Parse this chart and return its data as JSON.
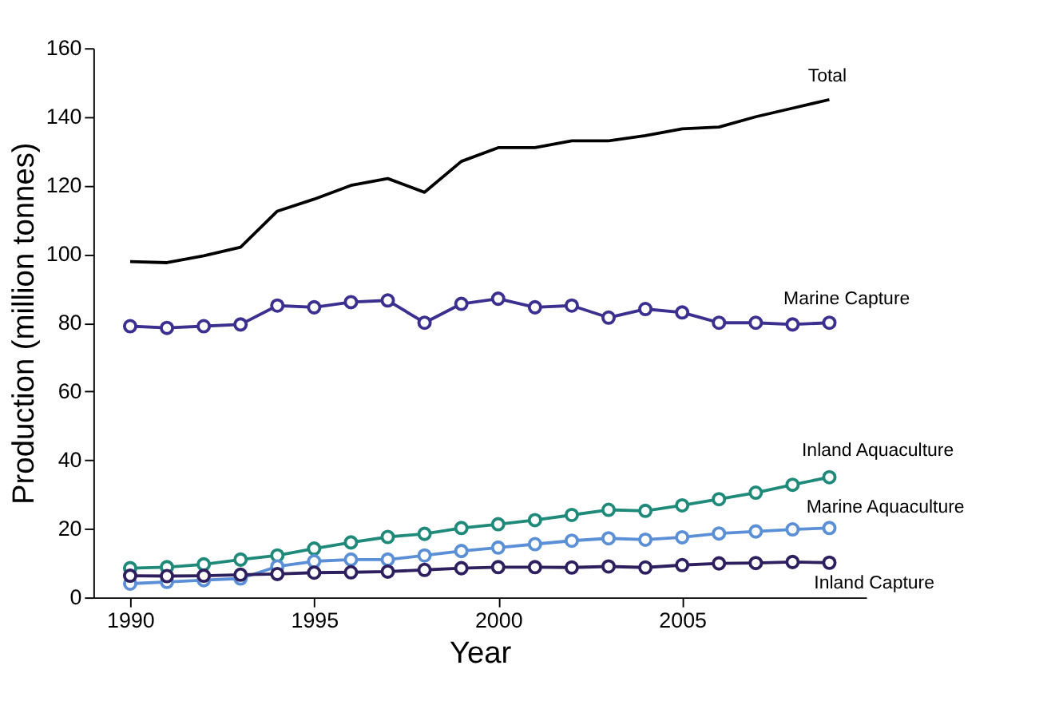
{
  "chart_data": {
    "type": "line",
    "xlabel": "Year",
    "ylabel": "Production (million tonnes)",
    "x": [
      1990,
      1991,
      1992,
      1993,
      1994,
      1995,
      1996,
      1997,
      1998,
      1999,
      2000,
      2001,
      2002,
      2003,
      2004,
      2005,
      2006,
      2007,
      2008,
      2009
    ],
    "xlim": [
      1989,
      2010
    ],
    "xticks": [
      1990,
      1995,
      2000,
      2005
    ],
    "ylim": [
      0,
      160
    ],
    "yticks": [
      0,
      20,
      40,
      60,
      80,
      100,
      120,
      140,
      160
    ],
    "grid": false,
    "series": [
      {
        "name": "Total",
        "color": "#000000",
        "marker": "none",
        "values": [
          97.8,
          97.5,
          99.5,
          102,
          112.5,
          116,
          120,
          122,
          118,
          127,
          131,
          131,
          133,
          133,
          134.5,
          136.5,
          137,
          140,
          142.5,
          145
        ]
      },
      {
        "name": "Marine Capture",
        "color": "#3b2f8f",
        "marker": "circle",
        "values": [
          79,
          78.5,
          79,
          79.5,
          85,
          84.5,
          86,
          86.5,
          80,
          85.5,
          87,
          84.5,
          85,
          81.5,
          84,
          83,
          80,
          80,
          79.5,
          80
        ]
      },
      {
        "name": "Inland Aquaculture",
        "color": "#1f8a7a",
        "marker": "circle",
        "values": [
          8.5,
          8.8,
          9.6,
          11,
          12.2,
          14.2,
          16,
          17.6,
          18.5,
          20.2,
          21.3,
          22.5,
          24,
          25.5,
          25.2,
          26.8,
          28.6,
          30.5,
          32.8,
          35
        ]
      },
      {
        "name": "Marine Aquaculture",
        "color": "#5b8fd6",
        "marker": "circle",
        "values": [
          4,
          4.5,
          5,
          5.5,
          9,
          10.5,
          11,
          11,
          12.2,
          13.5,
          14.5,
          15.5,
          16.5,
          17.2,
          16.8,
          17.5,
          18.6,
          19.2,
          19.8,
          20.2
        ]
      },
      {
        "name": "Inland Capture",
        "color": "#2e1f5e",
        "marker": "circle",
        "values": [
          6.3,
          6.2,
          6.3,
          6.6,
          6.8,
          7.2,
          7.3,
          7.5,
          8,
          8.5,
          8.8,
          8.8,
          8.7,
          9,
          8.7,
          9.4,
          9.9,
          10,
          10.3,
          10.1
        ]
      }
    ]
  }
}
